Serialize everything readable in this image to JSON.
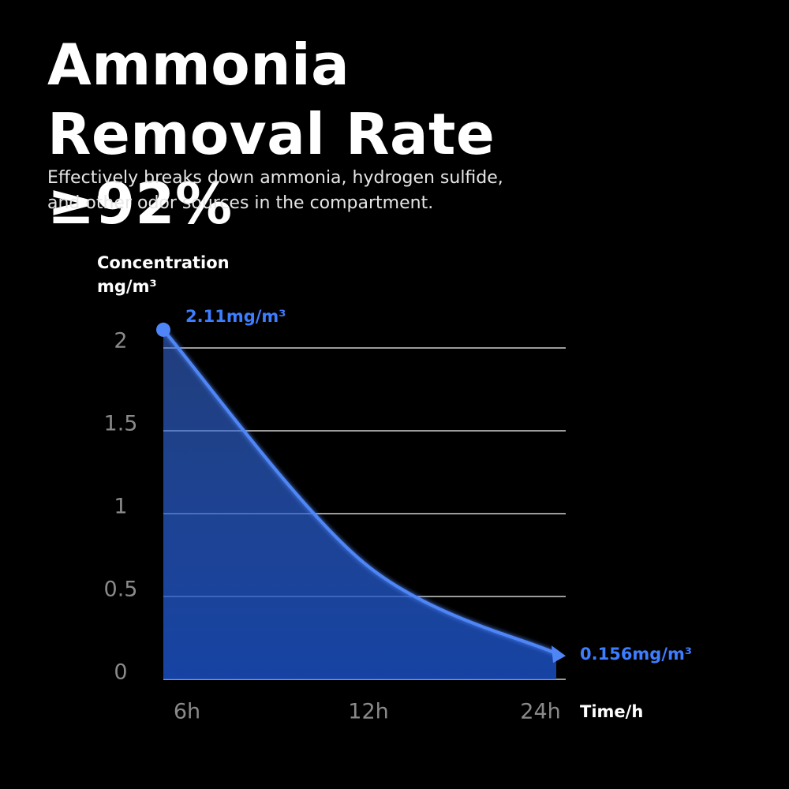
{
  "chart_data": {
    "type": "line",
    "title": "Ammonia Removal Rate ≥92%",
    "subtitle": "Effectively breaks down ammonia, hydrogen sulfide, and other odor sources in the compartment.",
    "ylabel": "Concentration mg/m³",
    "xlabel": "Time/h",
    "categories": [
      "6h",
      "12h",
      "24h"
    ],
    "values": [
      2.11,
      0.7,
      0.156
    ],
    "value_labels": [
      "2.11mg/m³",
      null,
      "0.156mg/m³"
    ],
    "color": "#4f86f7",
    "ylim": [
      0,
      2.2
    ],
    "yticks": [
      0,
      0.5,
      1,
      1.5,
      2
    ],
    "grid": true
  }
}
